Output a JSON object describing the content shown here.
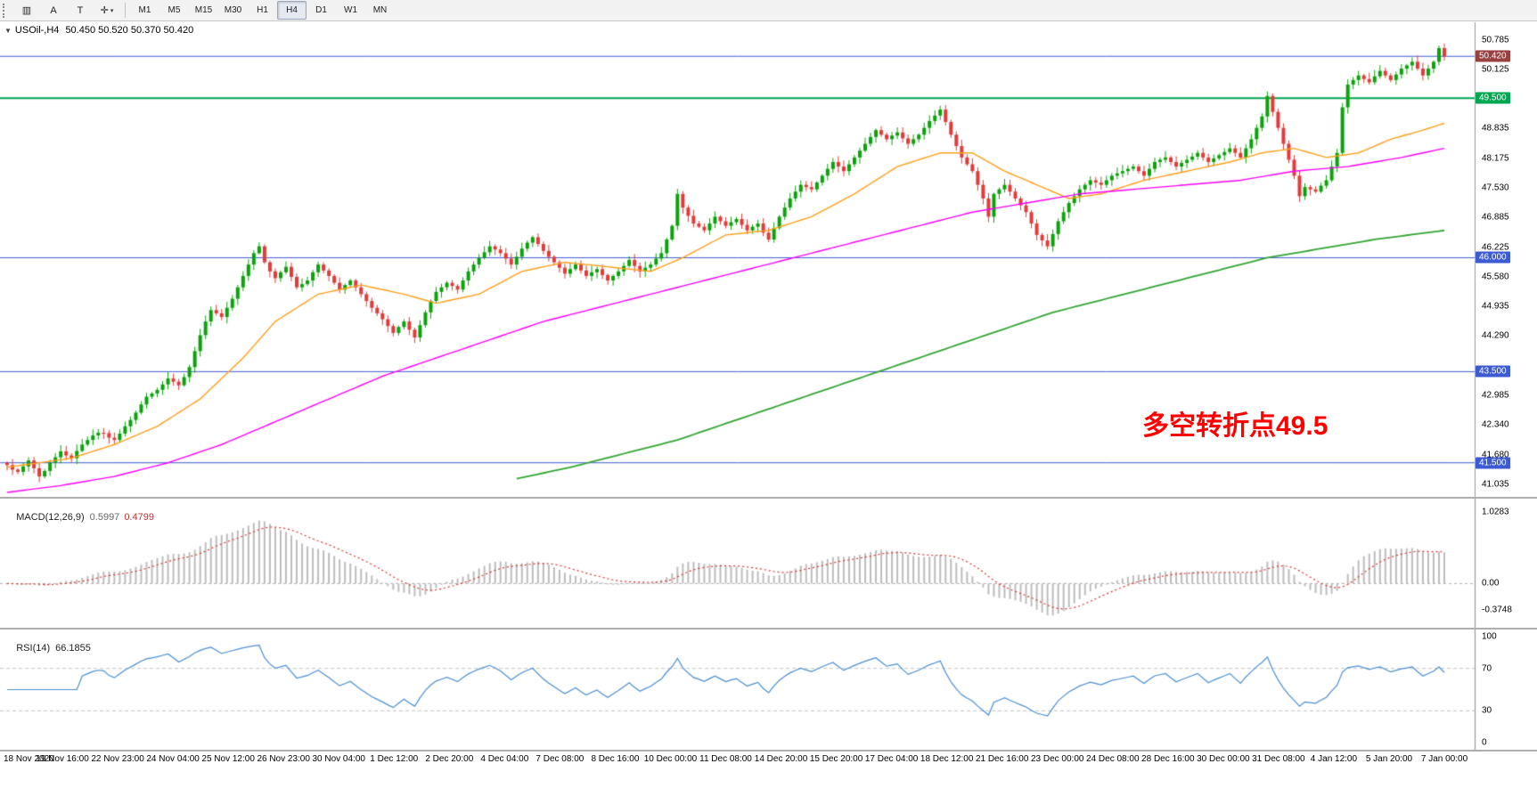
{
  "toolbar": {
    "tools": [
      {
        "name": "charts-grid-icon",
        "glyph": "▥"
      },
      {
        "name": "cursor-a-tool",
        "glyph": "A"
      },
      {
        "name": "text-label-tool",
        "glyph": "T"
      },
      {
        "name": "crosshair-tool",
        "glyph": "✛",
        "caret": true
      }
    ],
    "timeframes": [
      "M1",
      "M5",
      "M15",
      "M30",
      "H1",
      "H4",
      "D1",
      "W1",
      "MN"
    ],
    "active_timeframe": "H4"
  },
  "chart": {
    "collapse_glyph": "▼",
    "title": "USOil-,H4",
    "ohlc": "50.450 50.520 50.370 50.420"
  },
  "chart_data": {
    "type": "candlestick",
    "symbol": "USOil-",
    "timeframe": "H4",
    "last_price": "50.420",
    "price_axis": {
      "min": 40.85,
      "max": 51.05,
      "ticks": [
        50.785,
        50.125,
        48.835,
        48.175,
        47.53,
        46.885,
        46.225,
        45.58,
        44.935,
        44.29,
        42.985,
        42.34,
        41.68,
        41.035
      ]
    },
    "first_open": 41.5,
    "closes": [
      41.45,
      41.35,
      41.3,
      41.42,
      41.55,
      41.38,
      41.2,
      41.32,
      41.5,
      41.62,
      41.75,
      41.66,
      41.6,
      41.76,
      41.9,
      42.0,
      42.1,
      42.16,
      42.15,
      42.05,
      42.0,
      42.14,
      42.3,
      42.44,
      42.6,
      42.78,
      42.95,
      43.02,
      43.1,
      43.22,
      43.35,
      43.28,
      43.2,
      43.38,
      43.6,
      43.95,
      44.3,
      44.6,
      44.85,
      44.78,
      44.7,
      44.9,
      45.1,
      45.35,
      45.6,
      45.85,
      46.1,
      46.25,
      45.9,
      45.7,
      45.55,
      45.68,
      45.8,
      45.58,
      45.35,
      45.42,
      45.5,
      45.68,
      45.85,
      45.72,
      45.6,
      45.45,
      45.3,
      45.4,
      45.5,
      45.35,
      45.2,
      45.05,
      44.9,
      44.78,
      44.65,
      44.5,
      44.35,
      44.48,
      44.6,
      44.42,
      44.25,
      44.52,
      44.8,
      45.05,
      45.25,
      45.35,
      45.45,
      45.38,
      45.3,
      45.5,
      45.7,
      45.85,
      46.0,
      46.12,
      46.25,
      46.18,
      46.1,
      45.98,
      45.85,
      46.02,
      46.2,
      46.33,
      46.45,
      46.3,
      46.15,
      46.02,
      45.9,
      45.78,
      45.65,
      45.75,
      45.85,
      45.72,
      45.6,
      45.68,
      45.75,
      45.62,
      45.5,
      45.6,
      45.7,
      45.82,
      45.95,
      45.82,
      45.7,
      45.78,
      45.85,
      45.98,
      46.1,
      46.4,
      46.7,
      47.4,
      47.1,
      46.92,
      46.75,
      46.68,
      46.6,
      46.75,
      46.9,
      46.8,
      46.7,
      46.78,
      46.85,
      46.72,
      46.6,
      46.68,
      46.75,
      46.55,
      46.4,
      46.65,
      46.9,
      47.1,
      47.3,
      47.45,
      47.6,
      47.55,
      47.5,
      47.65,
      47.8,
      47.95,
      48.1,
      48.0,
      47.9,
      48.05,
      48.2,
      48.35,
      48.5,
      48.65,
      48.8,
      48.7,
      48.6,
      48.68,
      48.75,
      48.62,
      48.5,
      48.6,
      48.7,
      48.85,
      49.0,
      49.12,
      49.25,
      48.98,
      48.7,
      48.45,
      48.2,
      48.05,
      47.9,
      47.6,
      47.3,
      46.9,
      47.4,
      47.5,
      47.6,
      47.45,
      47.3,
      47.15,
      47.0,
      46.75,
      46.5,
      46.38,
      46.25,
      46.52,
      46.8,
      47.0,
      47.2,
      47.35,
      47.5,
      47.6,
      47.7,
      47.65,
      47.6,
      47.7,
      47.8,
      47.85,
      47.9,
      47.95,
      48.0,
      47.9,
      47.8,
      47.95,
      48.1,
      48.15,
      48.2,
      48.1,
      48.0,
      48.08,
      48.15,
      48.22,
      48.3,
      48.2,
      48.1,
      48.18,
      48.25,
      48.32,
      48.4,
      48.3,
      48.2,
      48.4,
      48.6,
      48.85,
      49.1,
      49.55,
      49.2,
      48.85,
      48.5,
      48.15,
      47.8,
      47.35,
      47.55,
      47.5,
      47.45,
      47.58,
      47.7,
      48.0,
      48.3,
      49.3,
      49.8,
      49.9,
      50.0,
      49.92,
      49.85,
      49.98,
      50.1,
      50.0,
      49.9,
      50.02,
      50.15,
      50.22,
      50.3,
      50.15,
      50.0,
      50.15,
      50.3,
      50.6,
      50.42
    ],
    "candle_colors": {
      "up": "#0ba30b",
      "down": "#e23b3b"
    },
    "hlines": [
      {
        "price": 50.42,
        "line": "#3c5bd2",
        "width": 1,
        "label": "50.420",
        "label_bg": "#994040"
      },
      {
        "price": 49.5,
        "line": "#00a650",
        "width": 2,
        "label": "49.500",
        "label_bg": "#00a650"
      },
      {
        "price": 46.0,
        "line": "#3c5bd2",
        "width": 1,
        "label": "46.000",
        "label_bg": "#3c5bd2"
      },
      {
        "price": 43.5,
        "line": "#3c5bd2",
        "width": 1,
        "label": "43.500",
        "label_bg": "#3c5bd2"
      },
      {
        "price": 41.5,
        "line": "#3c5bd2",
        "width": 1,
        "label": "41.500",
        "label_bg": "#3c5bd2"
      }
    ],
    "ma_lines": [
      {
        "name": "ma-fast",
        "color": "#ff9f1a",
        "width": 1.4,
        "points": [
          [
            0,
            41.4
          ],
          [
            12,
            41.6
          ],
          [
            20,
            41.9
          ],
          [
            28,
            42.3
          ],
          [
            36,
            42.9
          ],
          [
            44,
            43.8
          ],
          [
            50,
            44.6
          ],
          [
            58,
            45.2
          ],
          [
            66,
            45.4
          ],
          [
            74,
            45.2
          ],
          [
            80,
            45.0
          ],
          [
            88,
            45.2
          ],
          [
            96,
            45.7
          ],
          [
            104,
            45.9
          ],
          [
            112,
            45.8
          ],
          [
            120,
            45.7
          ],
          [
            126,
            46.0
          ],
          [
            134,
            46.5
          ],
          [
            142,
            46.6
          ],
          [
            150,
            46.9
          ],
          [
            158,
            47.4
          ],
          [
            166,
            48.0
          ],
          [
            174,
            48.3
          ],
          [
            180,
            48.3
          ],
          [
            186,
            47.9
          ],
          [
            192,
            47.6
          ],
          [
            198,
            47.3
          ],
          [
            204,
            47.4
          ],
          [
            212,
            47.7
          ],
          [
            220,
            47.9
          ],
          [
            228,
            48.1
          ],
          [
            234,
            48.3
          ],
          [
            240,
            48.4
          ],
          [
            246,
            48.2
          ],
          [
            252,
            48.3
          ],
          [
            258,
            48.6
          ],
          [
            264,
            48.8
          ],
          [
            268,
            48.95
          ]
        ]
      },
      {
        "name": "ma-mid",
        "color": "#ff00ff",
        "width": 1.4,
        "points": [
          [
            0,
            40.85
          ],
          [
            10,
            41.0
          ],
          [
            20,
            41.2
          ],
          [
            30,
            41.5
          ],
          [
            40,
            41.9
          ],
          [
            50,
            42.4
          ],
          [
            60,
            42.9
          ],
          [
            70,
            43.4
          ],
          [
            80,
            43.8
          ],
          [
            90,
            44.2
          ],
          [
            100,
            44.6
          ],
          [
            110,
            44.9
          ],
          [
            120,
            45.2
          ],
          [
            130,
            45.5
          ],
          [
            140,
            45.8
          ],
          [
            150,
            46.1
          ],
          [
            160,
            46.4
          ],
          [
            170,
            46.7
          ],
          [
            180,
            47.0
          ],
          [
            190,
            47.2
          ],
          [
            200,
            47.4
          ],
          [
            210,
            47.5
          ],
          [
            220,
            47.6
          ],
          [
            230,
            47.7
          ],
          [
            240,
            47.9
          ],
          [
            250,
            48.0
          ],
          [
            260,
            48.2
          ],
          [
            268,
            48.4
          ]
        ]
      },
      {
        "name": "ma-slow",
        "color": "#33a533",
        "width": 1.8,
        "points": [
          [
            95,
            41.15
          ],
          [
            105,
            41.4
          ],
          [
            115,
            41.7
          ],
          [
            125,
            42.0
          ],
          [
            135,
            42.4
          ],
          [
            145,
            42.8
          ],
          [
            155,
            43.2
          ],
          [
            165,
            43.6
          ],
          [
            175,
            44.0
          ],
          [
            185,
            44.4
          ],
          [
            195,
            44.8
          ],
          [
            205,
            45.1
          ],
          [
            215,
            45.4
          ],
          [
            225,
            45.7
          ],
          [
            235,
            46.0
          ],
          [
            245,
            46.2
          ],
          [
            255,
            46.4
          ],
          [
            268,
            46.6
          ]
        ]
      }
    ],
    "macd": {
      "label": "MACD(12,26,9)",
      "main_value": "0.5997",
      "signal_value": "0.4799",
      "fast": 12,
      "slow": 26,
      "signal": 9,
      "range": {
        "min": -0.47,
        "max": 1.16
      },
      "axis": [
        {
          "v": 1.0283,
          "t": "1.0283"
        },
        {
          "v": 0,
          "t": "0.00"
        },
        {
          "v": -0.3748,
          "t": "-0.3748"
        }
      ],
      "hist_color": "#bdbdbd",
      "signal_color": "#e03030"
    },
    "rsi": {
      "label": "RSI(14)",
      "value": "66.1855",
      "period": 14,
      "levels": [
        70,
        30
      ],
      "axis": [
        {
          "v": 100,
          "t": "100"
        },
        {
          "v": 70,
          "t": "70"
        },
        {
          "v": 30,
          "t": "30"
        },
        {
          "v": 0,
          "t": "0"
        }
      ],
      "line_color": "#4a8fd4"
    },
    "time_labels": [
      "18 Nov 2020",
      "19 Nov 16:00",
      "22 Nov 23:00",
      "24 Nov 04:00",
      "25 Nov 12:00",
      "26 Nov 23:00",
      "30 Nov 04:00",
      "1 Dec 12:00",
      "2 Dec 20:00",
      "4 Dec 04:00",
      "7 Dec 08:00",
      "8 Dec 16:00",
      "10 Dec 00:00",
      "11 Dec 08:00",
      "14 Dec 20:00",
      "15 Dec 20:00",
      "17 Dec 04:00",
      "18 Dec 12:00",
      "21 Dec 16:00",
      "23 Dec 00:00",
      "24 Dec 08:00",
      "28 Dec 16:00",
      "30 Dec 00:00",
      "31 Dec 08:00",
      "4 Jan 12:00",
      "5 Jan 20:00",
      "7 Jan 00:00"
    ],
    "annotation": {
      "text": "多空转折点49.5",
      "color": "#ff0000"
    }
  }
}
